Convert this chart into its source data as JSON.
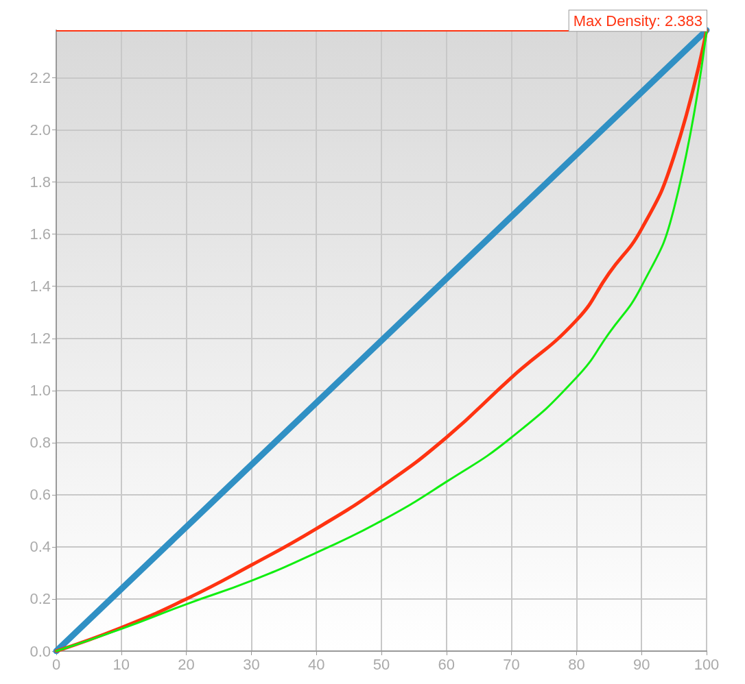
{
  "chart_data": {
    "type": "line",
    "x": [
      0,
      10,
      20,
      30,
      40,
      50,
      60,
      70,
      80,
      85,
      90,
      95,
      100
    ],
    "series": [
      {
        "color": "#3090c4",
        "x": [
          0,
          100
        ],
        "values": [
          0,
          2.383
        ]
      },
      {
        "color": "#ff3311",
        "values": [
          0,
          0.09,
          0.2,
          0.33,
          0.47,
          0.63,
          0.82,
          1.05,
          1.27,
          1.45,
          1.62,
          1.9,
          2.383
        ]
      },
      {
        "color": "#11ee11",
        "values": [
          0,
          0.085,
          0.18,
          0.27,
          0.378,
          0.5,
          0.65,
          0.82,
          1.05,
          1.22,
          1.4,
          1.7,
          2.383
        ]
      }
    ],
    "xlim": [
      0,
      100
    ],
    "xticks": [
      0,
      10,
      20,
      30,
      40,
      50,
      60,
      70,
      80,
      90,
      100
    ],
    "ylim": [
      0,
      2.383
    ],
    "yticks": [
      {
        "value": 0,
        "label": "0.0"
      },
      {
        "value": 0.2,
        "label": "0.2"
      },
      {
        "value": 0.4,
        "label": "0.4"
      },
      {
        "value": 0.6,
        "label": "0.6"
      },
      {
        "value": 0.8,
        "label": "0.8"
      },
      {
        "value": 1,
        "label": "1.0"
      },
      {
        "value": 1.2,
        "label": "1.2"
      },
      {
        "value": 1.4,
        "label": "1.4"
      },
      {
        "value": 1.6,
        "label": "1.6"
      },
      {
        "value": 1.8,
        "label": "1.8"
      },
      {
        "value": 2,
        "label": "2.0"
      },
      {
        "value": 2.2,
        "label": "2.2"
      }
    ],
    "ref_lines": [
      {
        "axis": "y",
        "value": 2.383,
        "label": "Max Density: 2.383",
        "color": "#ff3311"
      }
    ],
    "grid": true,
    "marker": "none",
    "line_style": "solid"
  }
}
